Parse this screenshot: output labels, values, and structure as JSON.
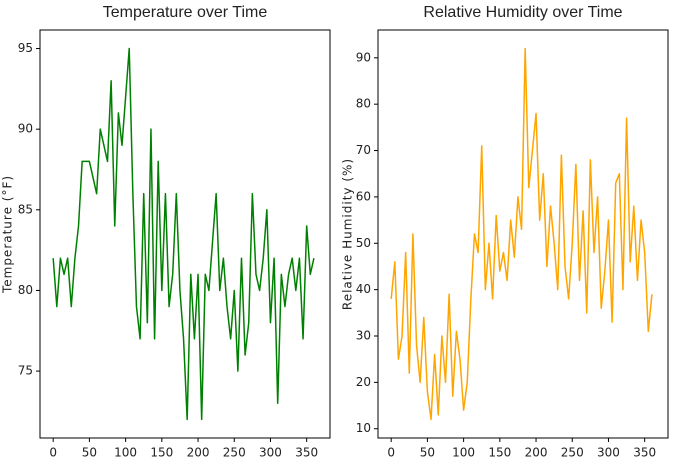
{
  "chart_data": [
    {
      "type": "line",
      "title": "Temperature over Time",
      "ylabel": "Temperature (°F)",
      "color": "#008000",
      "x": [
        0,
        5,
        10,
        15,
        20,
        25,
        30,
        35,
        40,
        45,
        50,
        55,
        60,
        65,
        70,
        75,
        80,
        85,
        90,
        95,
        100,
        105,
        110,
        115,
        120,
        125,
        130,
        135,
        140,
        145,
        150,
        155,
        160,
        165,
        170,
        175,
        180,
        185,
        190,
        195,
        200,
        205,
        210,
        215,
        220,
        225,
        230,
        235,
        240,
        245,
        250,
        255,
        260,
        265,
        270,
        275,
        280,
        285,
        290,
        295,
        300,
        305,
        310,
        315,
        320,
        325,
        330,
        335,
        340,
        345,
        350,
        355,
        360
      ],
      "values": [
        82,
        79,
        82,
        81,
        82,
        79,
        82,
        84,
        88,
        88,
        88,
        87,
        86,
        90,
        89,
        88,
        93,
        84,
        91,
        89,
        92,
        95,
        86,
        79,
        77,
        86,
        78,
        90,
        77,
        88,
        80,
        86,
        79,
        81,
        86,
        80,
        77,
        72,
        81,
        77,
        81,
        72,
        81,
        80,
        83,
        86,
        80,
        82,
        79,
        77,
        80,
        75,
        82,
        76,
        78,
        86,
        81,
        80,
        82,
        85,
        78,
        82,
        73,
        81,
        79,
        81,
        82,
        80,
        82,
        77,
        84,
        81,
        82
      ],
      "xlim": [
        -18.2,
        382.2
      ],
      "xticks": [
        0,
        50,
        100,
        150,
        200,
        250,
        300,
        350
      ],
      "ylim": [
        70.85,
        96.15
      ],
      "yticks": [
        75,
        80,
        85,
        90,
        95
      ]
    },
    {
      "type": "line",
      "title": "Relative Humidity over Time",
      "ylabel": "Relative Humidity (%)",
      "color": "#ffa500",
      "x": [
        0,
        5,
        10,
        15,
        20,
        25,
        30,
        35,
        40,
        45,
        50,
        55,
        60,
        65,
        70,
        75,
        80,
        85,
        90,
        95,
        100,
        105,
        110,
        115,
        120,
        125,
        130,
        135,
        140,
        145,
        150,
        155,
        160,
        165,
        170,
        175,
        180,
        185,
        190,
        195,
        200,
        205,
        210,
        215,
        220,
        225,
        230,
        235,
        240,
        245,
        250,
        255,
        260,
        265,
        270,
        275,
        280,
        285,
        290,
        295,
        300,
        305,
        310,
        315,
        320,
        325,
        330,
        335,
        340,
        345,
        350,
        355,
        360
      ],
      "values": [
        38,
        46,
        25,
        30,
        48,
        22,
        52,
        28,
        20,
        34,
        18,
        12,
        26,
        13,
        30,
        20,
        39,
        17,
        31,
        25,
        14,
        20,
        38,
        52,
        48,
        71,
        40,
        50,
        38,
        56,
        44,
        48,
        42,
        55,
        47,
        60,
        53,
        92,
        62,
        70,
        78,
        55,
        65,
        45,
        58,
        50,
        40,
        69,
        45,
        38,
        50,
        67,
        42,
        57,
        35,
        68,
        48,
        60,
        36,
        44,
        55,
        33,
        63,
        65,
        40,
        77,
        46,
        58,
        42,
        55,
        48,
        31,
        39
      ],
      "xlim": [
        -18.2,
        382.2
      ],
      "xticks": [
        0,
        50,
        100,
        150,
        200,
        250,
        300,
        350
      ],
      "ylim": [
        8,
        96
      ],
      "yticks": [
        10,
        20,
        30,
        40,
        50,
        60,
        70,
        80,
        90
      ]
    }
  ]
}
